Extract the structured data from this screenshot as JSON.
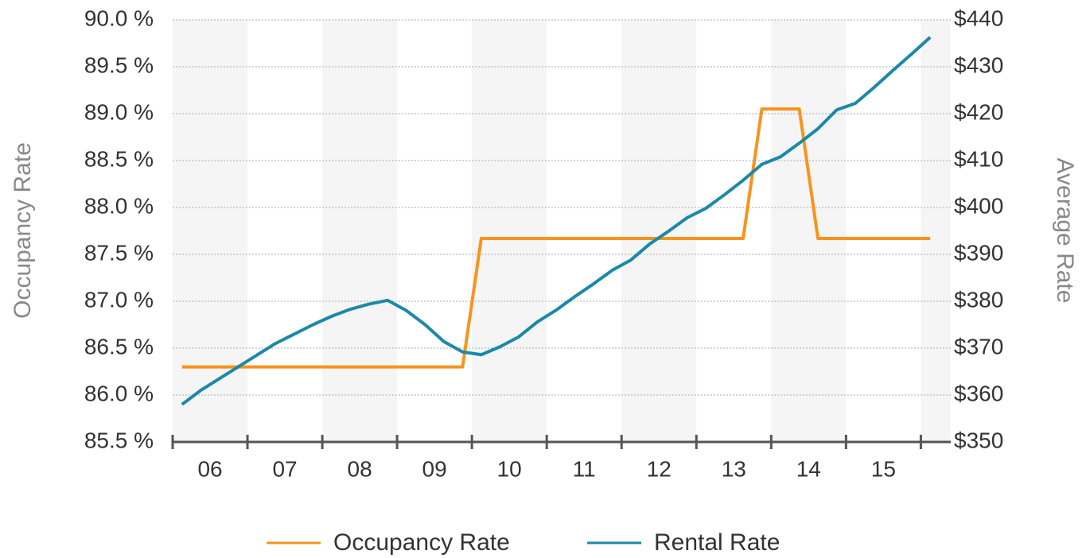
{
  "chart_data": {
    "type": "line",
    "categories": [
      "06",
      "07",
      "08",
      "09",
      "10",
      "11",
      "12",
      "13",
      "14",
      "15"
    ],
    "x": [
      6.125,
      6.375,
      6.625,
      6.875,
      7.125,
      7.375,
      7.625,
      7.875,
      8.125,
      8.375,
      8.625,
      8.875,
      9.125,
      9.375,
      9.625,
      9.875,
      10.125,
      10.375,
      10.625,
      10.875,
      11.125,
      11.375,
      11.625,
      11.875,
      12.125,
      12.375,
      12.625,
      12.875,
      13.125,
      13.375,
      13.625,
      13.875,
      14.125,
      14.375,
      14.625,
      14.875,
      15.125,
      15.375,
      15.625,
      15.875,
      16.125
    ],
    "xlim": [
      6,
      16.4
    ],
    "xticks": [
      6,
      7,
      8,
      9,
      10,
      11,
      12,
      13,
      14,
      15,
      16
    ],
    "y_label": "Occupancy Rate",
    "y2_label": "Average Rate",
    "ylim": [
      85.5,
      90
    ],
    "yticks": [
      {
        "value": 85.5,
        "label": "85.5 %"
      },
      {
        "value": 86,
        "label": "86.0 %"
      },
      {
        "value": 86.5,
        "label": "86.5 %"
      },
      {
        "value": 87,
        "label": "87.0 %"
      },
      {
        "value": 87.5,
        "label": "87.5 %"
      },
      {
        "value": 88,
        "label": "88.0 %"
      },
      {
        "value": 88.5,
        "label": "88.5 %"
      },
      {
        "value": 89,
        "label": "89.0 %"
      },
      {
        "value": 89.5,
        "label": "89.5 %"
      },
      {
        "value": 90,
        "label": "90.0 %"
      }
    ],
    "y2lim": [
      350,
      440
    ],
    "y2ticks": [
      {
        "value": 350,
        "label": "$350"
      },
      {
        "value": 360,
        "label": "$360"
      },
      {
        "value": 370,
        "label": "$370"
      },
      {
        "value": 380,
        "label": "$380"
      },
      {
        "value": 390,
        "label": "$390"
      },
      {
        "value": 400,
        "label": "$400"
      },
      {
        "value": 410,
        "label": "$410"
      },
      {
        "value": 420,
        "label": "$420"
      },
      {
        "value": 430,
        "label": "$430"
      },
      {
        "value": 440,
        "label": "$440"
      }
    ],
    "grid": true,
    "legend": "bottom",
    "series": [
      {
        "name": "Occupancy Rate",
        "color": "#f7941d",
        "values": [
          86.3,
          86.3,
          86.3,
          86.3,
          86.3,
          86.3,
          86.3,
          86.3,
          86.3,
          86.3,
          86.3,
          86.3,
          86.3,
          86.3,
          86.3,
          86.3,
          87.67,
          87.67,
          87.67,
          87.67,
          87.67,
          87.67,
          87.67,
          87.67,
          87.67,
          87.67,
          87.67,
          87.67,
          87.67,
          87.67,
          87.67,
          89.05,
          89.05,
          89.05,
          87.67,
          87.67,
          87.67,
          87.67,
          87.67,
          87.67,
          87.67
        ]
      },
      {
        "name": "Rental Rate",
        "color": "#1b89a8",
        "axis": "y2",
        "values": [
          358,
          361,
          363.5,
          366,
          368.5,
          371,
          373,
          375,
          376.8,
          378.3,
          379.4,
          380.2,
          378,
          375,
          371.4,
          369.2,
          368.6,
          370.3,
          372.4,
          375.6,
          378.1,
          381,
          383.7,
          386.6,
          388.8,
          392.2,
          394.9,
          397.8,
          399.8,
          402.7,
          405.8,
          409.2,
          410.8,
          413.7,
          416.8,
          420.8,
          422.2,
          425.6,
          429.2,
          432.7,
          436.3
        ]
      }
    ]
  }
}
